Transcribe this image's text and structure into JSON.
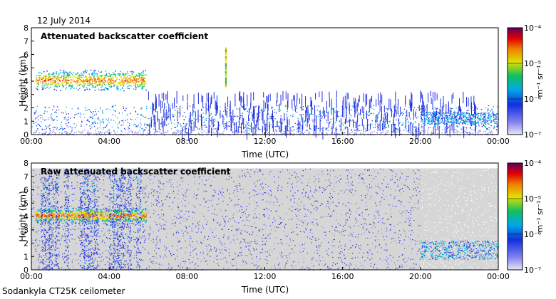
{
  "date": "12 July 2014",
  "footer": "Sodankyla CT25K ceilometer",
  "colors": {
    "background_grey": "#d6d6d6",
    "colormap": [
      "#d8d8f6",
      "#8080ee",
      "#2030e0",
      "#00b0e8",
      "#10c060",
      "#e8e000",
      "#f08000",
      "#e00000",
      "#600060"
    ]
  },
  "chart_data": [
    {
      "type": "heatmap",
      "title": "Attenuated backscatter coefficient",
      "xlabel": "Time (UTC)",
      "ylabel": "Height (km)",
      "xlim": [
        0,
        24
      ],
      "ylim": [
        0,
        8
      ],
      "xticks": [
        "00:00",
        "04:00",
        "08:00",
        "12:00",
        "16:00",
        "20:00",
        "00:00"
      ],
      "yticks": [
        "0",
        "1",
        "2",
        "3",
        "4",
        "5",
        "6",
        "7",
        "8"
      ],
      "colorbar": {
        "label": "m⁻¹ sr⁻¹",
        "ticks": [
          "10⁻⁷",
          "10⁻⁶",
          "10⁻⁵",
          "10⁻⁴"
        ],
        "scale": "log",
        "range": [
          1e-07,
          0.0001
        ]
      },
      "features": [
        {
          "type": "cloud_layer",
          "time_start": 0.2,
          "time_end": 5.9,
          "height_min": 3.5,
          "height_max": 4.7,
          "level": 0.8
        },
        {
          "type": "spike",
          "time": 10.0,
          "height_min": 3.6,
          "height_max": 6.6,
          "level": 0.75
        },
        {
          "type": "boundary_layer",
          "time_start": 0,
          "time_end": 24,
          "height_min": 0,
          "height_max": 2.2,
          "level": 0.35
        },
        {
          "type": "evening_band",
          "time_start": 20.0,
          "time_end": 24.0,
          "height_min": 0.8,
          "height_max": 1.7,
          "level": 0.4
        }
      ]
    },
    {
      "type": "heatmap",
      "title": "Raw attenuated backscatter coefficient",
      "xlabel": "Time (UTC)",
      "ylabel": "Height (km)",
      "xlim": [
        0,
        24
      ],
      "ylim": [
        0,
        8
      ],
      "xticks": [
        "00:00",
        "04:00",
        "08:00",
        "12:00",
        "16:00",
        "20:00",
        "00:00"
      ],
      "yticks": [
        "0",
        "1",
        "2",
        "3",
        "4",
        "5",
        "6",
        "7",
        "8"
      ],
      "colorbar": {
        "label": "m⁻¹ sr⁻¹",
        "ticks": [
          "10⁻⁷",
          "10⁻⁶",
          "10⁻⁵",
          "10⁻⁴"
        ],
        "scale": "log",
        "range": [
          1e-07,
          0.0001
        ]
      },
      "features": [
        {
          "type": "noise_background",
          "time_start": 0,
          "time_end": 24,
          "height_min": 0,
          "height_max": 7.6
        },
        {
          "type": "cloud_layer",
          "time_start": 0.2,
          "time_end": 5.9,
          "height_min": 3.6,
          "height_max": 4.6,
          "level": 0.8
        },
        {
          "type": "precipitation_columns",
          "time_start": 0.5,
          "time_end": 5.6,
          "height_min": 0,
          "height_max": 7.6,
          "level": 0.3
        },
        {
          "type": "evening_band",
          "time_start": 20.0,
          "time_end": 24.0,
          "height_min": 0.8,
          "height_max": 2.2,
          "level": 0.4
        }
      ]
    }
  ]
}
